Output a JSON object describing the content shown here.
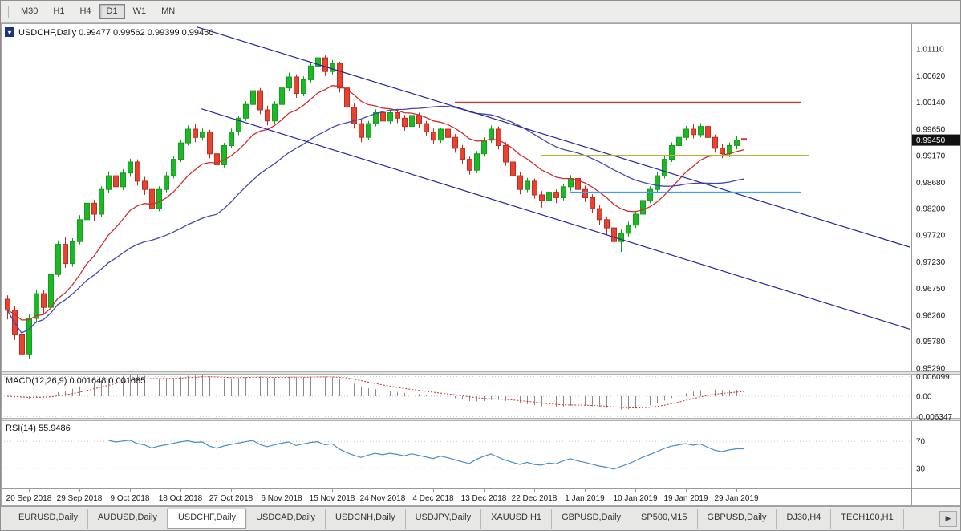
{
  "toolbar": {
    "timeframes": [
      {
        "label": "M30",
        "active": false
      },
      {
        "label": "H1",
        "active": false
      },
      {
        "label": "H4",
        "active": false
      },
      {
        "label": "D1",
        "active": true
      },
      {
        "label": "W1",
        "active": false
      },
      {
        "label": "MN",
        "active": false
      }
    ]
  },
  "chart": {
    "title_badge_glyph": "▼",
    "title": "USDCHF,Daily",
    "ohlc_text": "0.99477 0.99562 0.99399 0.99450"
  },
  "chart_data": {
    "type": "candlestick",
    "symbol": "USDCHF",
    "timeframe": "Daily",
    "ohlc": {
      "open": "0.99477",
      "high": "0.99562",
      "low": "0.99399",
      "close": "0.99450"
    },
    "current_price": "0.99450",
    "price_axis_labels": [
      "1.01110",
      "1.00620",
      "1.00140",
      "0.99650",
      "0.99170",
      "0.98680",
      "0.98200",
      "0.97720",
      "0.97230",
      "0.96750",
      "0.96260",
      "0.95780",
      "0.95290"
    ],
    "candles": [
      [
        0.9655,
        0.9662,
        0.9618,
        0.9635
      ],
      [
        0.9635,
        0.9642,
        0.9581,
        0.959
      ],
      [
        0.959,
        0.9601,
        0.954,
        0.9555
      ],
      [
        0.9555,
        0.9628,
        0.9546,
        0.962
      ],
      [
        0.962,
        0.9671,
        0.9612,
        0.9665
      ],
      [
        0.9665,
        0.9672,
        0.9628,
        0.964
      ],
      [
        0.964,
        0.9708,
        0.9635,
        0.97
      ],
      [
        0.97,
        0.9762,
        0.9696,
        0.9755
      ],
      [
        0.9755,
        0.9768,
        0.9712,
        0.972
      ],
      [
        0.972,
        0.9766,
        0.9714,
        0.976
      ],
      [
        0.976,
        0.9808,
        0.9755,
        0.98
      ],
      [
        0.98,
        0.9838,
        0.979,
        0.983
      ],
      [
        0.983,
        0.9836,
        0.9798,
        0.981
      ],
      [
        0.981,
        0.9861,
        0.9805,
        0.9855
      ],
      [
        0.9855,
        0.9888,
        0.9848,
        0.988
      ],
      [
        0.988,
        0.9886,
        0.9852,
        0.986
      ],
      [
        0.986,
        0.9892,
        0.9854,
        0.9885
      ],
      [
        0.9885,
        0.9911,
        0.9878,
        0.9905
      ],
      [
        0.9905,
        0.991,
        0.9862,
        0.987
      ],
      [
        0.987,
        0.9878,
        0.9845,
        0.9855
      ],
      [
        0.9855,
        0.986,
        0.9808,
        0.982
      ],
      [
        0.982,
        0.9861,
        0.9815,
        0.9855
      ],
      [
        0.9855,
        0.9887,
        0.985,
        0.988
      ],
      [
        0.988,
        0.9916,
        0.9875,
        0.991
      ],
      [
        0.991,
        0.9946,
        0.9905,
        0.994
      ],
      [
        0.994,
        0.9972,
        0.9935,
        0.9965
      ],
      [
        0.9965,
        0.9975,
        0.9941,
        0.995
      ],
      [
        0.995,
        0.9968,
        0.9944,
        0.996
      ],
      [
        0.996,
        0.9964,
        0.9912,
        0.992
      ],
      [
        0.992,
        0.9928,
        0.9888,
        0.99
      ],
      [
        0.99,
        0.994,
        0.9895,
        0.9935
      ],
      [
        0.9935,
        0.9966,
        0.993,
        0.996
      ],
      [
        0.996,
        0.999,
        0.9954,
        0.9985
      ],
      [
        0.9985,
        1.0016,
        0.998,
        1.001
      ],
      [
        1.001,
        1.0041,
        1.0005,
        1.0035
      ],
      [
        1.0035,
        1.004,
        0.9992,
        1.0
      ],
      [
        1.0,
        1.0008,
        0.9972,
        0.998
      ],
      [
        0.998,
        1.0016,
        0.9975,
        1.001
      ],
      [
        1.001,
        1.0046,
        1.0005,
        1.004
      ],
      [
        1.004,
        1.0068,
        1.0035,
        1.006
      ],
      [
        1.006,
        1.0065,
        1.0022,
        1.003
      ],
      [
        1.003,
        1.0061,
        1.0025,
        1.0055
      ],
      [
        1.0055,
        1.0086,
        1.005,
        1.008
      ],
      [
        1.008,
        1.0105,
        1.0072,
        1.0095
      ],
      [
        1.0095,
        1.0099,
        1.0062,
        1.007
      ],
      [
        1.007,
        1.0091,
        1.0064,
        1.0085
      ],
      [
        1.0085,
        1.0088,
        1.0032,
        1.004
      ],
      [
        1.004,
        1.0048,
        0.9998,
        1.0005
      ],
      [
        1.0005,
        1.0012,
        0.9966,
        0.9975
      ],
      [
        0.9975,
        0.9982,
        0.9941,
        0.995
      ],
      [
        0.995,
        0.998,
        0.9945,
        0.9975
      ],
      [
        0.9975,
        1.0001,
        0.997,
        0.9995
      ],
      [
        0.9995,
        1.0002,
        0.9972,
        0.998
      ],
      [
        0.998,
        1.0,
        0.9974,
        0.9995
      ],
      [
        0.9995,
        1.0,
        0.9976,
        0.9985
      ],
      [
        0.9985,
        0.9991,
        0.9962,
        0.997
      ],
      [
        0.997,
        0.9994,
        0.9965,
        0.999
      ],
      [
        0.999,
        0.9995,
        0.9968,
        0.9975
      ],
      [
        0.9975,
        0.998,
        0.9952,
        0.996
      ],
      [
        0.996,
        0.9966,
        0.9938,
        0.9945
      ],
      [
        0.9945,
        0.9968,
        0.994,
        0.9965
      ],
      [
        0.9965,
        0.997,
        0.9942,
        0.995
      ],
      [
        0.995,
        0.9956,
        0.9922,
        0.993
      ],
      [
        0.993,
        0.9936,
        0.9902,
        0.991
      ],
      [
        0.991,
        0.9915,
        0.9882,
        0.989
      ],
      [
        0.989,
        0.9925,
        0.9885,
        0.992
      ],
      [
        0.992,
        0.995,
        0.9915,
        0.9945
      ],
      [
        0.9945,
        0.9972,
        0.994,
        0.9965
      ],
      [
        0.9965,
        0.997,
        0.9928,
        0.9935
      ],
      [
        0.9935,
        0.9941,
        0.9898,
        0.9905
      ],
      [
        0.9905,
        0.9911,
        0.9872,
        0.988
      ],
      [
        0.988,
        0.9886,
        0.9846,
        0.9855
      ],
      [
        0.9855,
        0.9876,
        0.985,
        0.987
      ],
      [
        0.987,
        0.9875,
        0.9838,
        0.9845
      ],
      [
        0.9845,
        0.9852,
        0.9822,
        0.9835
      ],
      [
        0.9835,
        0.9856,
        0.9828,
        0.985
      ],
      [
        0.985,
        0.9855,
        0.983,
        0.984
      ],
      [
        0.984,
        0.9866,
        0.9835,
        0.986
      ],
      [
        0.986,
        0.9881,
        0.9852,
        0.9875
      ],
      [
        0.9875,
        0.988,
        0.9846,
        0.9855
      ],
      [
        0.9855,
        0.9862,
        0.9832,
        0.984
      ],
      [
        0.984,
        0.9846,
        0.9812,
        0.982
      ],
      [
        0.982,
        0.9826,
        0.9791,
        0.98
      ],
      [
        0.98,
        0.9806,
        0.9772,
        0.9785
      ],
      [
        0.9785,
        0.979,
        0.9716,
        0.976
      ],
      [
        0.976,
        0.9782,
        0.9741,
        0.9775
      ],
      [
        0.9775,
        0.9796,
        0.9768,
        0.979
      ],
      [
        0.979,
        0.9816,
        0.9785,
        0.981
      ],
      [
        0.981,
        0.9841,
        0.9805,
        0.9835
      ],
      [
        0.9835,
        0.9861,
        0.983,
        0.9855
      ],
      [
        0.9855,
        0.9886,
        0.985,
        0.988
      ],
      [
        0.988,
        0.9916,
        0.9875,
        0.991
      ],
      [
        0.991,
        0.9941,
        0.9905,
        0.9935
      ],
      [
        0.9935,
        0.9956,
        0.9928,
        0.995
      ],
      [
        0.995,
        0.9971,
        0.9944,
        0.9965
      ],
      [
        0.9965,
        0.9975,
        0.9948,
        0.9955
      ],
      [
        0.9955,
        0.9976,
        0.995,
        0.997
      ],
      [
        0.997,
        0.9974,
        0.9942,
        0.995
      ],
      [
        0.995,
        0.9955,
        0.9922,
        0.993
      ],
      [
        0.993,
        0.9938,
        0.9912,
        0.992
      ],
      [
        0.992,
        0.9941,
        0.9914,
        0.9935
      ],
      [
        0.9935,
        0.9952,
        0.9928,
        0.9945
      ],
      [
        0.99477,
        0.99562,
        0.99399,
        0.9945
      ]
    ],
    "date_ticks": [
      {
        "index": 3,
        "label": "20 Sep 2018"
      },
      {
        "index": 10,
        "label": "29 Sep 2018"
      },
      {
        "index": 17,
        "label": "9 Oct 2018"
      },
      {
        "index": 24,
        "label": "18 Oct 2018"
      },
      {
        "index": 31,
        "label": "27 Oct 2018"
      },
      {
        "index": 38,
        "label": "6 Nov 2018"
      },
      {
        "index": 45,
        "label": "15 Nov 2018"
      },
      {
        "index": 52,
        "label": "24 Nov 2018"
      },
      {
        "index": 59,
        "label": "4 Dec 2018"
      },
      {
        "index": 66,
        "label": "13 Dec 2018"
      },
      {
        "index": 73,
        "label": "22 Dec 2018"
      },
      {
        "index": 80,
        "label": "1 Jan 2019"
      },
      {
        "index": 87,
        "label": "10 Jan 2019"
      },
      {
        "index": 94,
        "label": "19 Jan 2019"
      },
      {
        "index": 101,
        "label": "29 Jan 2019"
      }
    ],
    "overlays": {
      "moving_averages": [
        {
          "name": "fast-ma",
          "method": "ema",
          "period": 12,
          "color": "#cf2e2e"
        },
        {
          "name": "slow-ma",
          "method": "sma",
          "period": 30,
          "color": "#4247b0"
        }
      ],
      "trendlines": [
        {
          "i1": 26.3,
          "p1": 1.0151,
          "i2": 125.0,
          "p2": 0.975,
          "color": "#26269c"
        },
        {
          "i1": 26.9,
          "p1": 1.0002,
          "i2": 125.1,
          "p2": 0.96,
          "color": "#26269c"
        }
      ],
      "hlines": [
        {
          "price": 1.0014,
          "i1": 62,
          "i2": 110,
          "color": "#e03030"
        },
        {
          "price": 0.9917,
          "i1": 74,
          "i2": 111,
          "color": "#b3b32e"
        },
        {
          "price": 0.985,
          "i1": 78,
          "i2": 110,
          "color": "#3aa0ff"
        }
      ]
    },
    "indicators": {
      "macd": {
        "title": "MACD(12,26,9)",
        "values_text": "0.001648 0.001685",
        "fast": 12,
        "slow": 26,
        "signal": 9,
        "axis_labels": [
          {
            "value": 0.006099,
            "label": "0.006099"
          },
          {
            "value": 0,
            "label": "0.00"
          },
          {
            "value": -0.006347,
            "label": "-0.006347"
          }
        ]
      },
      "rsi": {
        "title": "RSI(14)",
        "value_text": "55.9486",
        "period": 14,
        "levels": [
          {
            "value": 70,
            "label": "70"
          },
          {
            "value": 30,
            "label": "30"
          }
        ]
      }
    },
    "colors": {
      "up": "#149c1c",
      "up_fill": "#1db826",
      "down": "#bf2d22",
      "down_fill": "#e8432f",
      "macd_hist": "#8a8a8a",
      "macd_signal": "#cc3030",
      "rsi": "#4a8cc4",
      "badge_bg": "#111111",
      "badge_fg": "#ffffff"
    }
  },
  "tabs": {
    "items": [
      {
        "label": "EURUSD,Daily",
        "active": false
      },
      {
        "label": "AUDUSD,Daily",
        "active": false
      },
      {
        "label": "USDCHF,Daily",
        "active": true
      },
      {
        "label": "USDCAD,Daily",
        "active": false
      },
      {
        "label": "USDCNH,Daily",
        "active": false
      },
      {
        "label": "USDJPY,Daily",
        "active": false
      },
      {
        "label": "XAUUSD,H1",
        "active": false
      },
      {
        "label": "GBPUSD,Daily",
        "active": false
      },
      {
        "label": "SP500,M15",
        "active": false
      },
      {
        "label": "GBPUSD,Daily",
        "active": false
      },
      {
        "label": "DJ30,H4",
        "active": false
      },
      {
        "label": "TECH100,H1",
        "active": false
      }
    ],
    "scroll_right_glyph": "▶"
  }
}
